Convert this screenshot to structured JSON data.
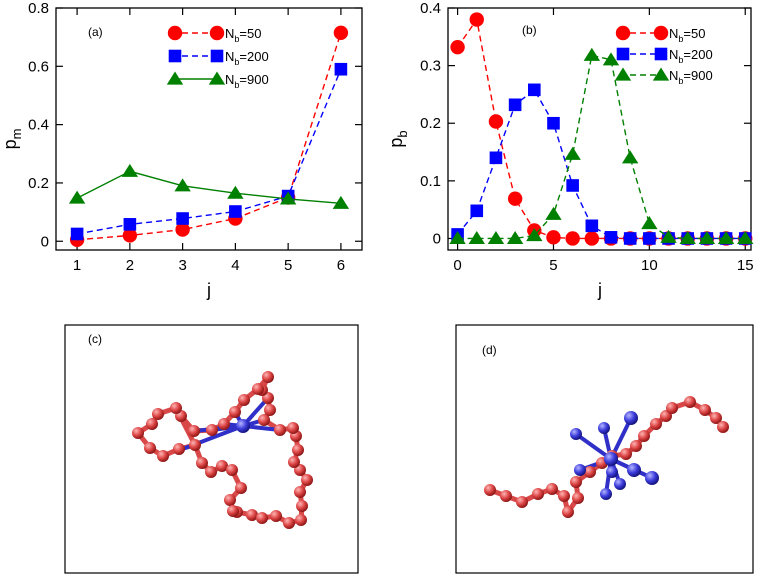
{
  "chart_data": [
    {
      "type": "line",
      "panel_label": "(a)",
      "xlabel": "j",
      "ylabel": "p",
      "ylabel_sub": "m",
      "xlim": [
        0.6,
        6.4
      ],
      "ylim": [
        -0.03,
        0.8
      ],
      "xticks": [
        1,
        2,
        3,
        4,
        5,
        6
      ],
      "yticks": [
        0,
        0.2,
        0.4,
        0.6,
        0.8
      ],
      "xtick_labels": [
        "1",
        "2",
        "3",
        "4",
        "5",
        "6"
      ],
      "ytick_labels": [
        "0",
        "0.2",
        "0.4",
        "0.6",
        "0.8"
      ],
      "legend_position": "top-right",
      "series": [
        {
          "name": "N_b=50",
          "label_main": "N",
          "label_sub": "b",
          "label_rest": "=50",
          "color": "#ff0000",
          "marker": "circle",
          "dashed": true,
          "x": [
            1,
            2,
            3,
            4,
            5,
            6
          ],
          "y": [
            0.005,
            0.02,
            0.04,
            0.078,
            0.15,
            0.715
          ]
        },
        {
          "name": "N_b=200",
          "label_main": "N",
          "label_sub": "b",
          "label_rest": "=200",
          "color": "#0000ff",
          "marker": "square",
          "dashed": true,
          "x": [
            1,
            2,
            3,
            4,
            5,
            6
          ],
          "y": [
            0.025,
            0.058,
            0.078,
            0.102,
            0.155,
            0.59
          ]
        },
        {
          "name": "N_b=900",
          "label_main": "N",
          "label_sub": "b",
          "label_rest": "=900",
          "color": "#008000",
          "marker": "triangle",
          "dashed": false,
          "x": [
            1,
            2,
            3,
            4,
            5,
            6
          ],
          "y": [
            0.148,
            0.24,
            0.19,
            0.165,
            0.145,
            0.13
          ]
        }
      ]
    },
    {
      "type": "line",
      "panel_label": "(b)",
      "xlabel": "j",
      "ylabel": "p",
      "ylabel_sub": "b",
      "xlim": [
        -0.5,
        15.3
      ],
      "ylim": [
        -0.02,
        0.4
      ],
      "xticks": [
        0,
        5,
        10,
        15
      ],
      "yticks": [
        0,
        0.1,
        0.2,
        0.3,
        0.4
      ],
      "xtick_labels": [
        "0",
        "5",
        "10",
        "15"
      ],
      "ytick_labels": [
        "0",
        "0.1",
        "0.2",
        "0.3",
        "0.4"
      ],
      "legend_position": "top-right",
      "series": [
        {
          "name": "N_b=50",
          "label_main": "N",
          "label_sub": "b",
          "label_rest": "=50",
          "color": "#ff0000",
          "marker": "circle",
          "dashed": true,
          "x": [
            0,
            1,
            2,
            3,
            4,
            5,
            6,
            7,
            8,
            9,
            10,
            11,
            12,
            13,
            14,
            15
          ],
          "y": [
            0.332,
            0.38,
            0.203,
            0.069,
            0.014,
            0.002,
            0,
            0,
            0,
            0,
            0,
            0,
            0,
            0,
            0,
            0
          ]
        },
        {
          "name": "N_b=200",
          "label_main": "N",
          "label_sub": "b",
          "label_rest": "=200",
          "color": "#0000ff",
          "marker": "square",
          "dashed": true,
          "x": [
            0,
            1,
            2,
            3,
            4,
            5,
            6,
            7,
            8,
            9,
            10,
            11,
            12,
            13,
            14,
            15
          ],
          "y": [
            0.007,
            0.048,
            0.14,
            0.232,
            0.258,
            0.2,
            0.092,
            0.022,
            0.002,
            0,
            0,
            0,
            0,
            0,
            0,
            0
          ]
        },
        {
          "name": "N_b=900",
          "label_main": "N",
          "label_sub": "b",
          "label_rest": "=900",
          "color": "#008000",
          "marker": "triangle",
          "dashed": true,
          "x": [
            0,
            1,
            2,
            3,
            4,
            5,
            6,
            7,
            8,
            9,
            10,
            11,
            12,
            13,
            14,
            15
          ],
          "y": [
            0,
            0,
            0,
            0,
            0.005,
            0.042,
            0.146,
            0.318,
            0.31,
            0.14,
            0.026,
            0.002,
            0,
            0,
            0,
            0
          ]
        }
      ]
    }
  ],
  "snapshots": [
    {
      "panel_label": "(c)",
      "polymer_color": "#d94848",
      "bond_color": "#3030c8"
    },
    {
      "panel_label": "(d)",
      "polymer_color": "#d94848",
      "bond_color": "#3030c8"
    }
  ]
}
